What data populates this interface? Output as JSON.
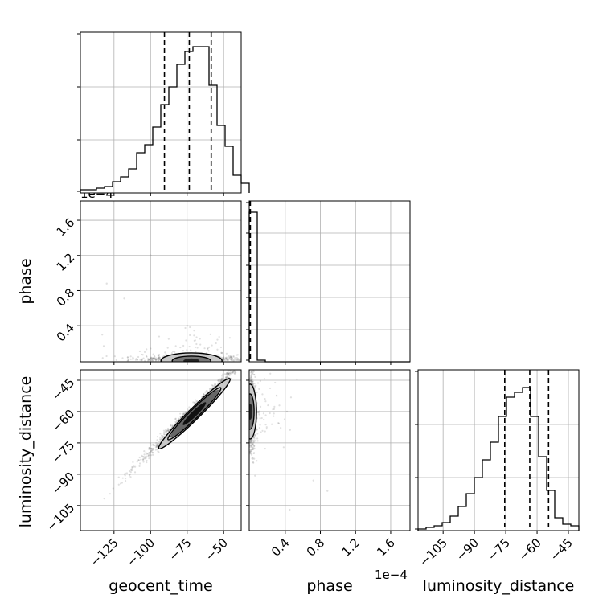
{
  "figure": {
    "type": "corner-plot"
  },
  "chart_data": {
    "type": "corner",
    "parameters": [
      "geocent_time",
      "phase",
      "luminosity_distance"
    ],
    "offset_text": "1e−4",
    "axes_ranges": {
      "geocent_time": [
        -148,
        -38
      ],
      "phase": [
        -0.01,
        1.82
      ],
      "luminosity_distance": [
        -117,
        -40
      ]
    },
    "ticks": {
      "geocent_time": [
        {
          "v": -125,
          "label": "−125"
        },
        {
          "v": -100,
          "label": "−100"
        },
        {
          "v": -75,
          "label": "−75"
        },
        {
          "v": -50,
          "label": "−50"
        }
      ],
      "phase": [
        {
          "v": 0.4,
          "label": "0.4"
        },
        {
          "v": 0.8,
          "label": "0.8"
        },
        {
          "v": 1.2,
          "label": "1.2"
        },
        {
          "v": 1.6,
          "label": "1.6"
        }
      ],
      "luminosity_distance": [
        {
          "v": -105,
          "label": "−105"
        },
        {
          "v": -90,
          "label": "−90"
        },
        {
          "v": -75,
          "label": "−75"
        },
        {
          "v": -60,
          "label": "−60"
        },
        {
          "v": -45,
          "label": "−45"
        }
      ]
    },
    "histograms": {
      "geocent_time": {
        "bin_start": -148,
        "bin_width": 5.5,
        "counts": [
          0.02,
          0.02,
          0.03,
          0.04,
          0.07,
          0.1,
          0.15,
          0.25,
          0.3,
          0.41,
          0.55,
          0.66,
          0.8,
          0.88,
          0.91,
          0.91,
          0.67,
          0.42,
          0.29,
          0.11,
          0.06
        ],
        "quantiles": [
          -90.5,
          -73.5,
          -58.5
        ]
      },
      "phase": {
        "bin_start": -0.01,
        "bin_width": 0.0915,
        "counts": [
          0.93,
          0.01,
          0,
          0,
          0,
          0,
          0,
          0,
          0,
          0,
          0,
          0,
          0,
          0,
          0,
          0,
          0,
          0,
          0,
          0
        ],
        "quantiles": [
          0.0,
          0.001,
          0.003
        ]
      },
      "luminosity_distance": {
        "bin_start": -117,
        "bin_width": 3.85,
        "counts": [
          0.01,
          0.02,
          0.03,
          0.05,
          0.09,
          0.15,
          0.23,
          0.33,
          0.44,
          0.55,
          0.71,
          0.83,
          0.86,
          0.89,
          0.71,
          0.46,
          0.25,
          0.08,
          0.04,
          0.03
        ],
        "quantiles": [
          -75.5,
          -63.5,
          -54.5
        ]
      }
    },
    "hist_ticks": {
      "geocent_time": [
        0.33,
        0.66
      ],
      "phase": [
        0.2,
        0.4,
        0.6,
        0.8
      ],
      "luminosity_distance": [
        0.33,
        0.66
      ]
    }
  }
}
